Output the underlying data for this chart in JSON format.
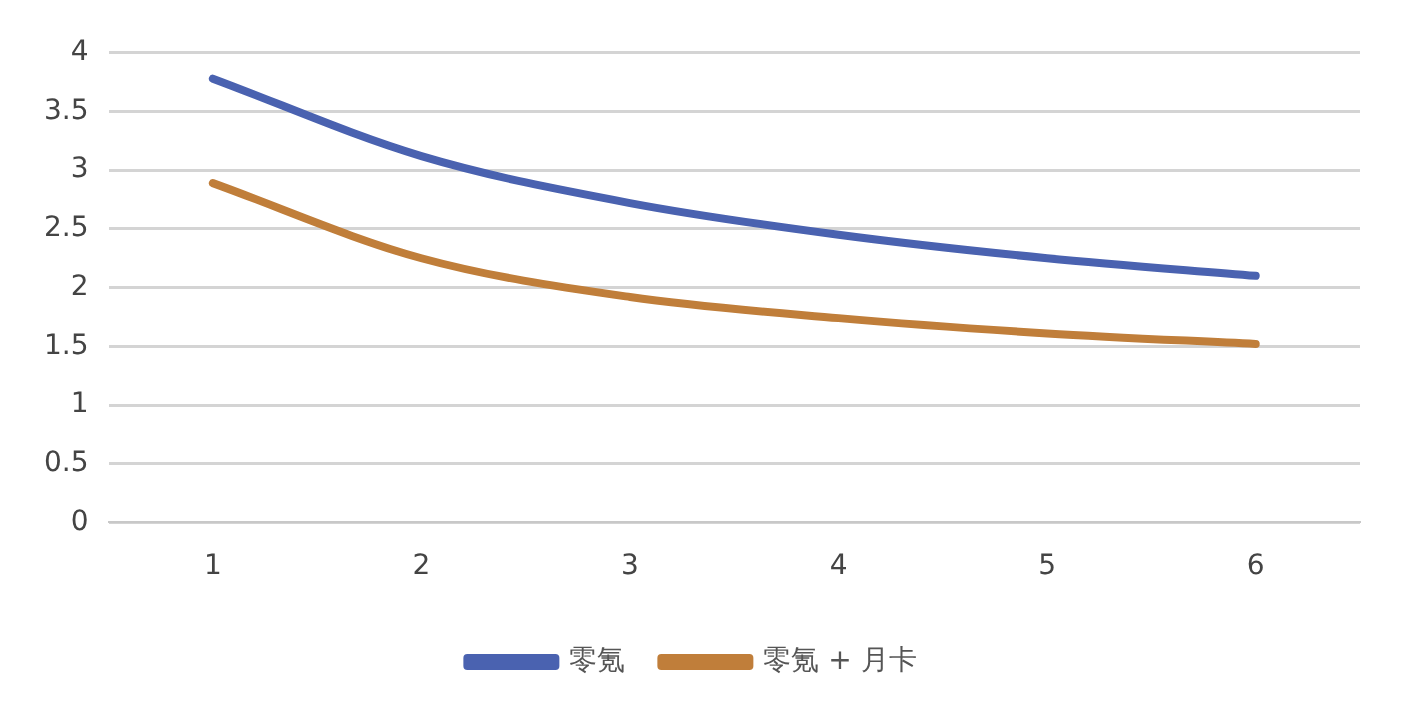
{
  "chart_data": {
    "type": "line",
    "categories": [
      "1",
      "2",
      "3",
      "4",
      "5",
      "6"
    ],
    "series": [
      {
        "name": "零氪",
        "color": "#4a62b0",
        "values": [
          3.78,
          3.12,
          2.72,
          2.45,
          2.25,
          2.1
        ]
      },
      {
        "name": "零氪 + 月卡",
        "color": "#c07e3a",
        "values": [
          2.89,
          2.25,
          1.92,
          1.74,
          1.61,
          1.52
        ]
      }
    ],
    "ylim": [
      0,
      4
    ],
    "yticks": [
      0,
      0.5,
      1,
      1.5,
      2,
      2.5,
      3,
      3.5,
      4
    ],
    "grid": "y",
    "legend": "bottom",
    "marker": "none",
    "line_style": "solid"
  }
}
